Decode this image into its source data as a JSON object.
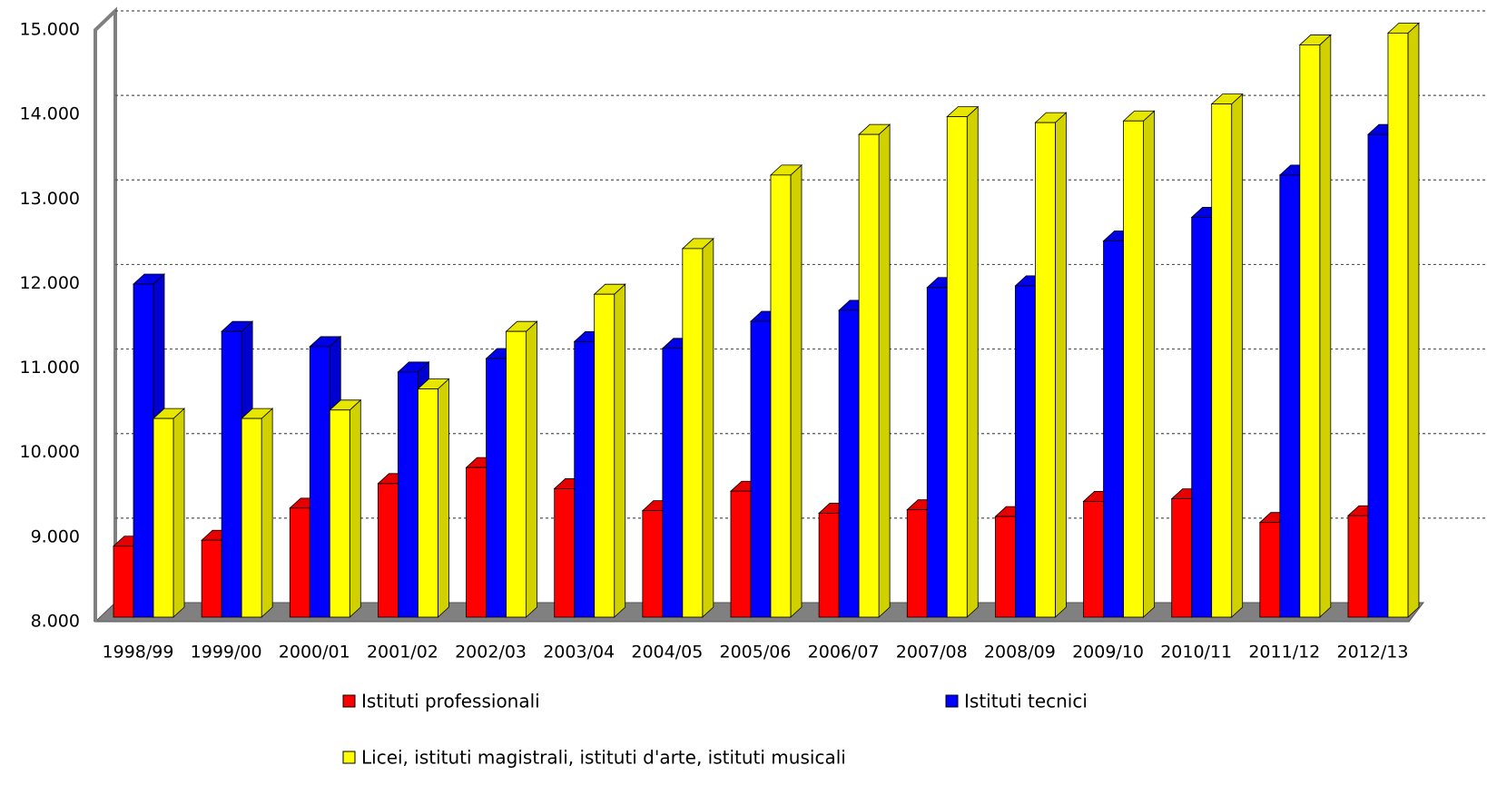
{
  "chart_data": {
    "type": "bar3d",
    "categories": [
      "1998/99",
      "1999/00",
      "2000/01",
      "2001/02",
      "2002/03",
      "2003/04",
      "2004/05",
      "2005/06",
      "2006/07",
      "2007/08",
      "2008/09",
      "2009/10",
      "2010/11",
      "2011/12",
      "2012/13"
    ],
    "series": [
      {
        "name": "Istituti professionali",
        "color": "#ff0000",
        "values": [
          8840,
          8910,
          9290,
          9580,
          9770,
          9520,
          9260,
          9490,
          9230,
          9270,
          9190,
          9370,
          9400,
          9120,
          9200
        ]
      },
      {
        "name": "Istituti tecnici",
        "color": "#0000ff",
        "values": [
          11940,
          11380,
          11200,
          10900,
          11060,
          11260,
          11180,
          11500,
          11630,
          11900,
          11920,
          12450,
          12730,
          13230,
          13710
        ]
      },
      {
        "name": "Licei, istituti magistrali, istituti d'arte, istituti musicali",
        "color": "#ffff00",
        "values": [
          10350,
          10350,
          10450,
          10700,
          11380,
          11820,
          12360,
          13230,
          13710,
          13920,
          13850,
          13870,
          14070,
          14770,
          14910
        ]
      }
    ],
    "ylim": [
      8000,
      15000
    ],
    "yticks": [
      {
        "value": 8000,
        "label": "8.000"
      },
      {
        "value": 9000,
        "label": "9.000"
      },
      {
        "value": 10000,
        "label": "10.000"
      },
      {
        "value": 11000,
        "label": "11.000"
      },
      {
        "value": 12000,
        "label": "12.000"
      },
      {
        "value": 13000,
        "label": "13.000"
      },
      {
        "value": 14000,
        "label": "14.000"
      },
      {
        "value": 15000,
        "label": "15.000"
      }
    ],
    "grid": true,
    "legend": "bottom"
  }
}
